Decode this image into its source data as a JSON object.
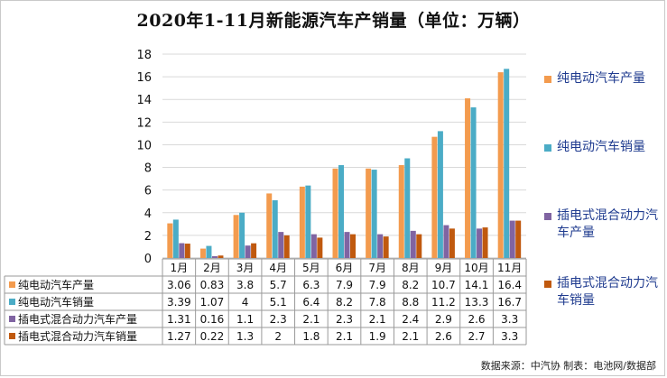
{
  "title": "2020年1-11月新能源汽车产销量（单位：万辆）",
  "source": "数据来源：中汽协 制表：电池网/数据部",
  "chart_data": {
    "type": "bar",
    "title": "2020年1-11月新能源汽车产销量（单位：万辆）",
    "categories": [
      "1月",
      "2月",
      "3月",
      "4月",
      "5月",
      "6月",
      "7月",
      "8月",
      "9月",
      "10月",
      "11月"
    ],
    "ylim": [
      0,
      18
    ],
    "yticks": [
      "0",
      "2",
      "4",
      "6",
      "8",
      "10",
      "12",
      "14",
      "16",
      "18"
    ],
    "grid": true,
    "legend_position": "right",
    "series": [
      {
        "name": "纯电动汽车产量",
        "color": "#F39B4E",
        "values": [
          3.06,
          0.83,
          3.8,
          5.7,
          6.3,
          7.9,
          7.9,
          8.2,
          10.7,
          14.1,
          16.4
        ],
        "labels": [
          "3.06",
          "0.83",
          "3.8",
          "5.7",
          "6.3",
          "7.9",
          "7.9",
          "8.2",
          "10.7",
          "14.1",
          "16.4"
        ]
      },
      {
        "name": "纯电动汽车销量",
        "color": "#4BACC6",
        "values": [
          3.39,
          1.07,
          4,
          5.1,
          6.4,
          8.2,
          7.8,
          8.8,
          11.2,
          13.3,
          16.7
        ],
        "labels": [
          "3.39",
          "1.07",
          "4",
          "5.1",
          "6.4",
          "8.2",
          "7.8",
          "8.8",
          "11.2",
          "13.3",
          "16.7"
        ]
      },
      {
        "name": "插电式混合动力汽车产量",
        "color": "#8064A2",
        "values": [
          1.31,
          0.16,
          1.1,
          2.3,
          2.1,
          2.3,
          2.1,
          2.4,
          2.9,
          2.6,
          3.3
        ],
        "labels": [
          "1.31",
          "0.16",
          "1.1",
          "2.3",
          "2.1",
          "2.3",
          "2.1",
          "2.4",
          "2.9",
          "2.6",
          "3.3"
        ]
      },
      {
        "name": "插电式混合动力汽车销量",
        "color": "#C0590E",
        "values": [
          1.27,
          0.22,
          1.3,
          2,
          1.8,
          2.1,
          1.9,
          2.1,
          2.6,
          2.7,
          3.3
        ],
        "labels": [
          "1.27",
          "0.22",
          "1.3",
          "2",
          "1.8",
          "2.1",
          "1.9",
          "2.1",
          "2.6",
          "2.7",
          "3.3"
        ]
      }
    ]
  }
}
